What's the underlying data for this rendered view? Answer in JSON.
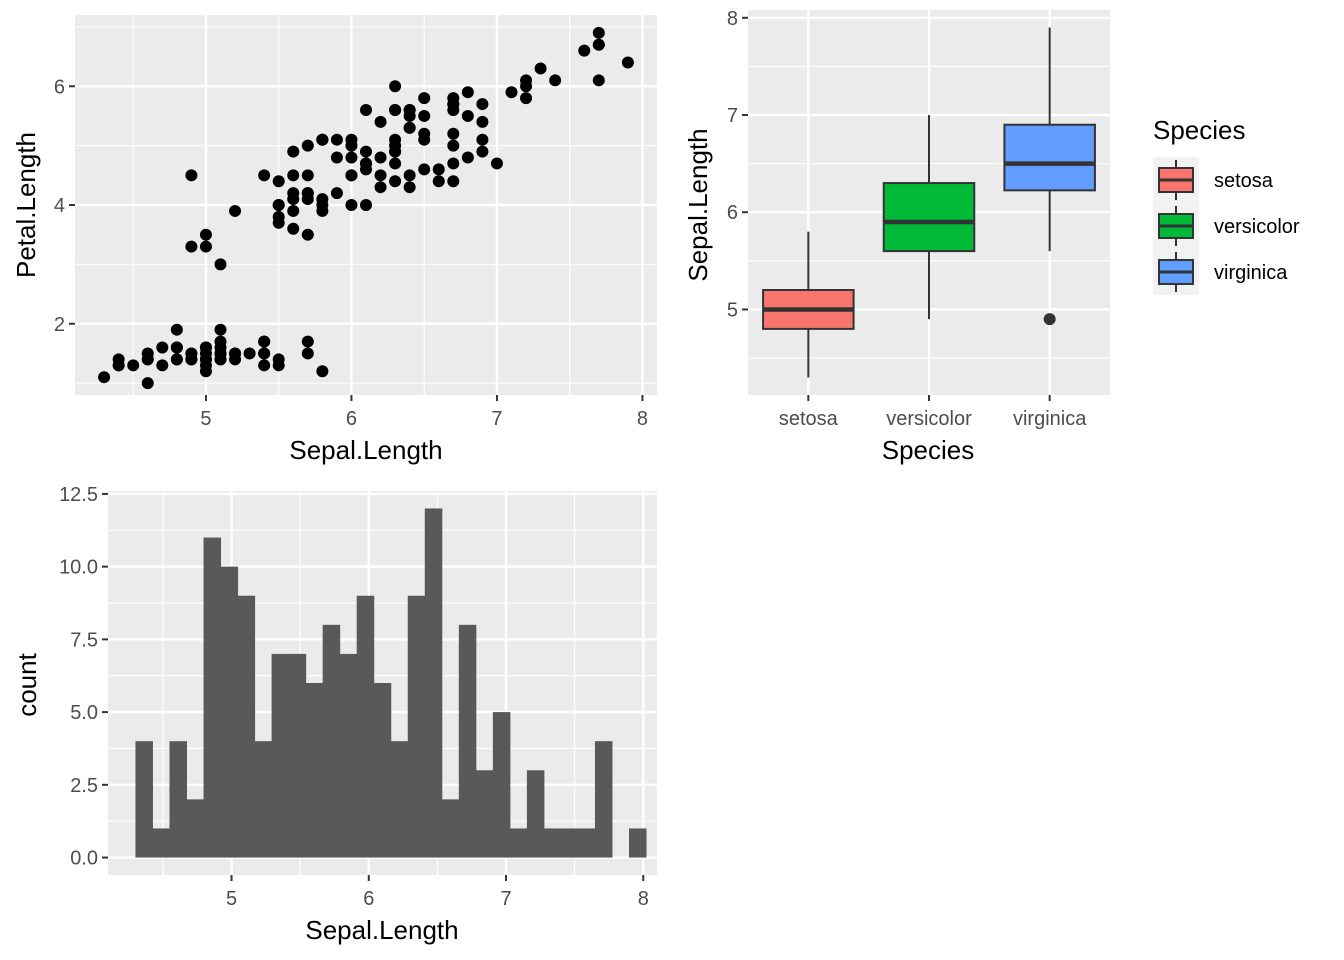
{
  "chart_data": [
    {
      "type": "scatter",
      "xlabel": "Sepal.Length",
      "ylabel": "Petal.Length",
      "xlim": [
        4.1,
        8.1
      ],
      "ylim": [
        0.8,
        7.2
      ],
      "xticks": [
        5,
        6,
        7,
        8
      ],
      "yticks": [
        2,
        4,
        6
      ],
      "grid": true,
      "point_color": "#000000",
      "x": [
        5.1,
        4.9,
        4.7,
        4.6,
        5.0,
        5.4,
        4.6,
        5.0,
        4.4,
        4.9,
        5.4,
        4.8,
        4.8,
        4.3,
        5.8,
        5.7,
        5.4,
        5.1,
        5.7,
        5.1,
        5.4,
        5.1,
        4.6,
        5.1,
        4.8,
        5.0,
        5.0,
        5.2,
        5.2,
        4.7,
        4.8,
        5.4,
        5.2,
        5.5,
        4.9,
        5.0,
        5.5,
        4.9,
        4.4,
        5.1,
        5.0,
        4.5,
        4.4,
        5.0,
        5.1,
        4.8,
        5.1,
        4.6,
        5.3,
        5.0,
        7.0,
        6.4,
        6.9,
        5.5,
        6.5,
        5.7,
        6.3,
        4.9,
        6.6,
        5.2,
        5.0,
        5.9,
        6.0,
        6.1,
        5.6,
        6.7,
        5.6,
        5.8,
        6.2,
        5.6,
        5.9,
        6.1,
        6.3,
        6.1,
        6.4,
        6.6,
        6.8,
        6.7,
        6.0,
        5.7,
        5.5,
        5.5,
        5.8,
        6.0,
        5.4,
        6.0,
        6.7,
        6.3,
        5.6,
        5.5,
        5.5,
        6.1,
        5.8,
        5.0,
        5.6,
        5.7,
        5.7,
        6.2,
        5.1,
        5.7,
        6.3,
        5.8,
        7.1,
        6.3,
        6.5,
        7.6,
        4.9,
        7.3,
        6.7,
        7.2,
        6.5,
        6.4,
        6.8,
        5.7,
        5.8,
        6.4,
        6.5,
        7.7,
        7.7,
        6.0,
        6.9,
        5.6,
        7.7,
        6.3,
        6.7,
        7.2,
        6.2,
        6.1,
        6.4,
        7.2,
        7.4,
        7.9,
        6.4,
        6.3,
        6.1,
        7.7,
        6.3,
        6.4,
        6.0,
        6.9,
        6.7,
        6.9,
        5.8,
        6.8,
        6.7,
        6.7,
        6.3,
        6.5,
        6.2,
        5.9
      ],
      "y": [
        1.4,
        1.4,
        1.3,
        1.5,
        1.4,
        1.7,
        1.4,
        1.5,
        1.4,
        1.5,
        1.5,
        1.6,
        1.4,
        1.1,
        1.2,
        1.5,
        1.3,
        1.4,
        1.7,
        1.5,
        1.7,
        1.5,
        1.0,
        1.7,
        1.9,
        1.6,
        1.6,
        1.5,
        1.4,
        1.6,
        1.6,
        1.5,
        1.5,
        1.4,
        1.5,
        1.2,
        1.3,
        1.4,
        1.3,
        1.5,
        1.3,
        1.3,
        1.3,
        1.6,
        1.9,
        1.4,
        1.6,
        1.4,
        1.5,
        1.4,
        4.7,
        4.5,
        4.9,
        4.0,
        4.6,
        4.5,
        4.7,
        3.3,
        4.6,
        3.9,
        3.5,
        4.2,
        4.0,
        4.7,
        3.6,
        4.4,
        4.5,
        4.1,
        4.5,
        3.9,
        4.8,
        4.0,
        4.9,
        4.7,
        4.3,
        4.4,
        4.8,
        5.0,
        4.5,
        3.5,
        3.8,
        3.7,
        3.9,
        5.1,
        4.5,
        4.5,
        4.7,
        4.4,
        4.1,
        4.0,
        4.4,
        4.6,
        4.0,
        3.3,
        4.2,
        4.2,
        4.2,
        4.3,
        3.0,
        4.1,
        6.0,
        5.1,
        5.9,
        5.6,
        5.8,
        6.6,
        4.5,
        6.3,
        5.8,
        6.1,
        5.1,
        5.3,
        5.5,
        5.0,
        5.1,
        5.3,
        5.5,
        6.7,
        6.9,
        5.0,
        5.7,
        4.9,
        6.7,
        4.9,
        5.7,
        6.0,
        4.8,
        4.9,
        5.6,
        5.8,
        6.1,
        6.4,
        5.6,
        5.1,
        5.6,
        6.1,
        5.6,
        5.5,
        4.8,
        5.4,
        5.6,
        5.1,
        5.1,
        5.9,
        5.7,
        5.2,
        5.0,
        5.2,
        5.4,
        5.1
      ]
    },
    {
      "type": "boxplot",
      "xlabel": "Species",
      "ylabel": "Sepal.Length",
      "ylim": [
        4.12,
        8.08
      ],
      "yticks": [
        5,
        6,
        7,
        8
      ],
      "categories": [
        "setosa",
        "versicolor",
        "virginica"
      ],
      "boxes": [
        {
          "category": "setosa",
          "min": 4.3,
          "q1": 4.8,
          "median": 5.0,
          "q3": 5.2,
          "max": 5.8,
          "outliers": [],
          "color": "#F8766D"
        },
        {
          "category": "versicolor",
          "min": 4.9,
          "q1": 5.6,
          "median": 5.9,
          "q3": 6.3,
          "max": 7.0,
          "outliers": [],
          "color": "#00BA38"
        },
        {
          "category": "virginica",
          "min": 5.6,
          "q1": 6.225,
          "median": 6.5,
          "q3": 6.9,
          "max": 7.9,
          "outliers": [
            4.9
          ],
          "color": "#619CFF"
        }
      ],
      "legend": {
        "title": "Species",
        "position": "right",
        "items": [
          {
            "label": "setosa",
            "color": "#F8766D"
          },
          {
            "label": "versicolor",
            "color": "#00BA38"
          },
          {
            "label": "virginica",
            "color": "#619CFF"
          }
        ]
      }
    },
    {
      "type": "histogram",
      "xlabel": "Sepal.Length",
      "ylabel": "count",
      "xlim": [
        4.1,
        8.1
      ],
      "ylim": [
        -0.6,
        12.6
      ],
      "xticks": [
        5,
        6,
        7,
        8
      ],
      "yticks": [
        "0.0",
        "2.5",
        "5.0",
        "7.5",
        "10.0",
        "12.5"
      ],
      "bar_color": "#595959",
      "bin_start": 4.3,
      "bin_width": 0.124,
      "values": [
        4,
        1,
        4,
        2,
        11,
        10,
        9,
        4,
        7,
        7,
        6,
        8,
        7,
        9,
        6,
        4,
        9,
        12,
        2,
        8,
        3,
        5,
        1,
        3,
        1,
        1,
        1,
        4,
        0,
        1
      ]
    }
  ]
}
